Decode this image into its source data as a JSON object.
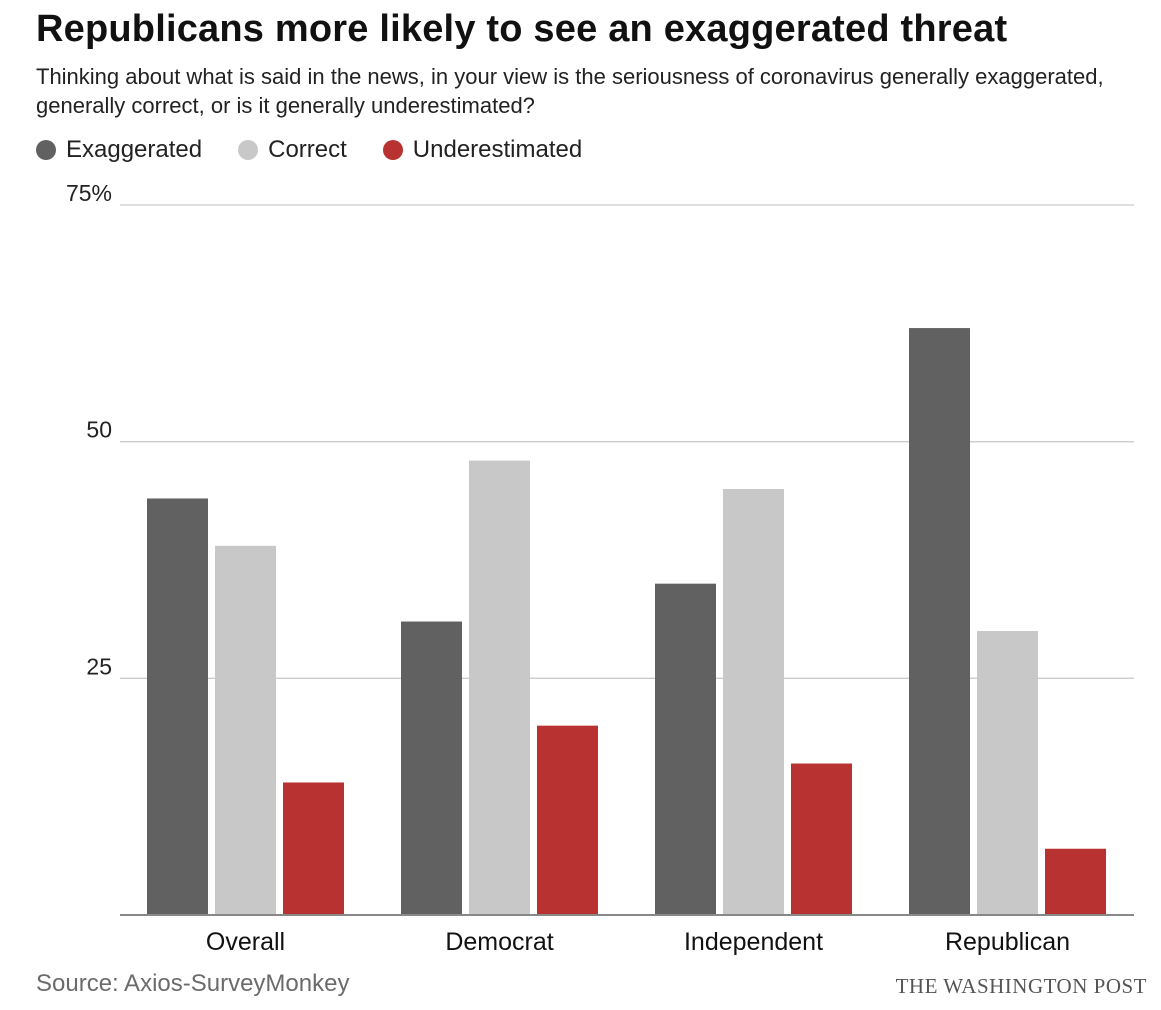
{
  "title": "Republicans more likely to see an exaggerated threat",
  "subtitle": "Thinking about what is said in the news, in your view is the seriousness of coronavirus generally exaggerated, generally correct, or is it generally underestimated?",
  "source": "Source: Axios-SurveyMonkey",
  "credit": "THE WASHINGTON POST",
  "colors": {
    "exaggerated": "#616161",
    "correct": "#c8c8c8",
    "underestimated": "#b83232",
    "grid": "#cccccc",
    "axis": "#888888"
  },
  "chart_data": {
    "type": "bar",
    "title": "Republicans more likely to see an exaggerated threat",
    "categories": [
      "Overall",
      "Democrat",
      "Independent",
      "Republican"
    ],
    "series": [
      {
        "name": "Exaggerated",
        "color": "#616161",
        "values": [
          44,
          31,
          35,
          62
        ]
      },
      {
        "name": "Correct",
        "color": "#c8c8c8",
        "values": [
          39,
          48,
          45,
          30
        ]
      },
      {
        "name": "Underestimated",
        "color": "#b83232",
        "values": [
          14,
          20,
          16,
          7
        ]
      }
    ],
    "ylim": [
      0,
      75
    ],
    "yticks": [
      {
        "value": 25,
        "label": "25"
      },
      {
        "value": 50,
        "label": "50"
      },
      {
        "value": 75,
        "label": "75%"
      }
    ],
    "grid": true,
    "legend": "top-left",
    "xlabel": "",
    "ylabel": ""
  }
}
